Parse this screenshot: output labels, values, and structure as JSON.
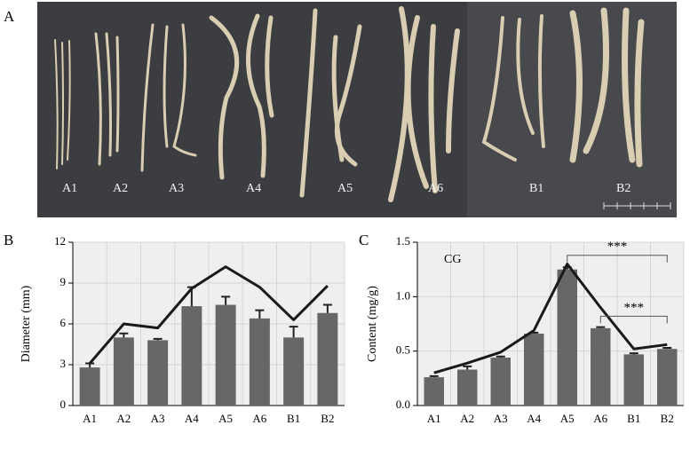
{
  "panel_labels": [
    "A",
    "B",
    "C"
  ],
  "photo": {
    "labels": [
      "A1",
      "A2",
      "A3",
      "A4",
      "A5",
      "A6",
      "B1",
      "B2"
    ]
  },
  "chart_data": [
    {
      "type": "bar",
      "y_label": "Diameter (mm)",
      "categories": [
        "A1",
        "A2",
        "A3",
        "A4",
        "A5",
        "A6",
        "B1",
        "B2"
      ],
      "series": [
        {
          "type": "bar",
          "color": "#676767",
          "values": [
            2.8,
            5.0,
            4.8,
            7.3,
            7.4,
            6.4,
            5.0,
            6.8
          ],
          "errors": [
            0.3,
            0.3,
            0.1,
            1.4,
            0.6,
            0.6,
            0.8,
            0.6
          ]
        },
        {
          "type": "line",
          "color": "#1a1a1a",
          "values": [
            3.1,
            6.0,
            5.7,
            8.6,
            10.2,
            8.7,
            6.3,
            8.8
          ]
        }
      ],
      "ylim": [
        0,
        12
      ],
      "yticks": [
        0,
        3,
        6,
        9,
        12
      ],
      "grid": true
    },
    {
      "type": "bar",
      "y_label": "Content (mg/g)",
      "annotation": "CG",
      "categories": [
        "A1",
        "A2",
        "A3",
        "A4",
        "A5",
        "A6",
        "B1",
        "B2"
      ],
      "series": [
        {
          "type": "bar",
          "color": "#676767",
          "values": [
            0.26,
            0.33,
            0.44,
            0.66,
            1.25,
            0.71,
            0.47,
            0.52
          ],
          "errors": [
            0.01,
            0.03,
            0.01,
            0.01,
            0.02,
            0.01,
            0.01,
            0.01
          ]
        },
        {
          "type": "line",
          "color": "#1a1a1a",
          "values": [
            0.3,
            0.39,
            0.49,
            0.69,
            1.3,
            0.9,
            0.52,
            0.56
          ]
        }
      ],
      "significance": [
        {
          "text": "***",
          "between": [
            "A5",
            "B2"
          ],
          "y": 1.38
        },
        {
          "text": "***",
          "between": [
            "A6",
            "B2"
          ],
          "y": 0.82
        }
      ],
      "ylim": [
        0,
        1.5
      ],
      "yticks": [
        {
          "value": 0,
          "label": "0.0"
        },
        0.5,
        {
          "value": 1,
          "label": "1.0"
        },
        1.5
      ],
      "grid": true
    }
  ]
}
